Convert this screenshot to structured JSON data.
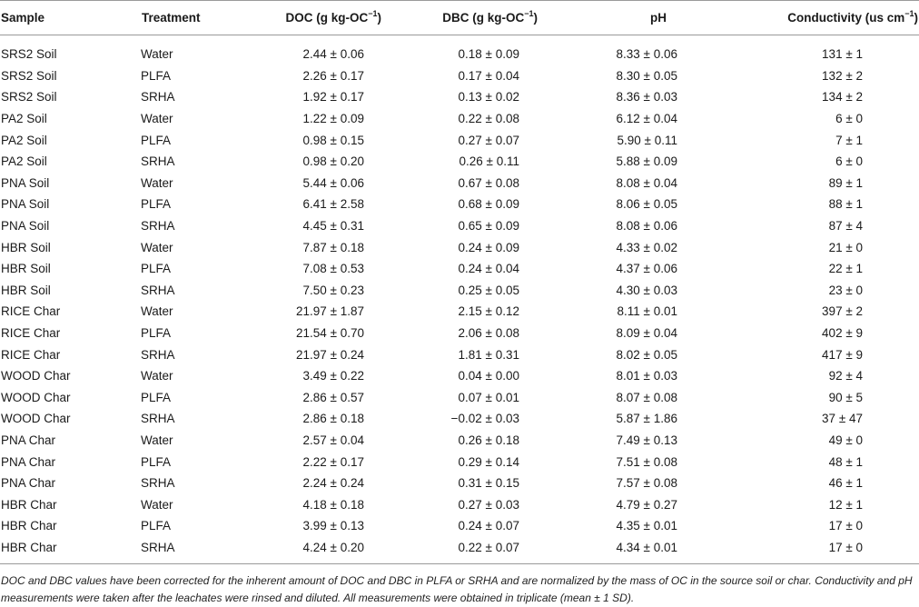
{
  "table": {
    "headers": {
      "sample": "Sample",
      "treatment": "Treatment",
      "doc": "DOC (g kg-OC",
      "doc_sup": "−1",
      "doc_close": ")",
      "dbc": "DBC (g kg-OC",
      "dbc_sup": "−1",
      "dbc_close": ")",
      "ph": "pH",
      "conductivity": "Conductivity (us cm",
      "conductivity_sup": "−1",
      "conductivity_close": ")"
    },
    "rows": [
      {
        "sample": "SRS2 Soil",
        "treatment": "Water",
        "doc": "2.44 ± 0.06",
        "dbc": "0.18 ± 0.09",
        "ph": "8.33 ± 0.06",
        "conductivity": "131 ± 1"
      },
      {
        "sample": "SRS2 Soil",
        "treatment": "PLFA",
        "doc": "2.26 ± 0.17",
        "dbc": "0.17 ± 0.04",
        "ph": "8.30 ± 0.05",
        "conductivity": "132 ± 2"
      },
      {
        "sample": "SRS2 Soil",
        "treatment": "SRHA",
        "doc": "1.92 ± 0.17",
        "dbc": "0.13 ± 0.02",
        "ph": "8.36 ± 0.03",
        "conductivity": "134 ± 2"
      },
      {
        "sample": "PA2 Soil",
        "treatment": "Water",
        "doc": "1.22 ± 0.09",
        "dbc": "0.22 ± 0.08",
        "ph": "6.12 ± 0.04",
        "conductivity": "6 ± 0"
      },
      {
        "sample": "PA2 Soil",
        "treatment": "PLFA",
        "doc": "0.98 ± 0.15",
        "dbc": "0.27 ± 0.07",
        "ph": "5.90 ± 0.11",
        "conductivity": "7 ± 1"
      },
      {
        "sample": "PA2 Soil",
        "treatment": "SRHA",
        "doc": "0.98 ± 0.20",
        "dbc": "0.26 ± 0.11",
        "ph": "5.88 ± 0.09",
        "conductivity": "6 ± 0"
      },
      {
        "sample": "PNA Soil",
        "treatment": "Water",
        "doc": "5.44 ± 0.06",
        "dbc": "0.67 ± 0.08",
        "ph": "8.08 ± 0.04",
        "conductivity": "89 ± 1"
      },
      {
        "sample": "PNA Soil",
        "treatment": "PLFA",
        "doc": "6.41 ± 2.58",
        "dbc": "0.68 ± 0.09",
        "ph": "8.06 ± 0.05",
        "conductivity": "88 ± 1"
      },
      {
        "sample": "PNA Soil",
        "treatment": "SRHA",
        "doc": "4.45 ± 0.31",
        "dbc": "0.65 ± 0.09",
        "ph": "8.08 ± 0.06",
        "conductivity": "87 ± 4"
      },
      {
        "sample": "HBR Soil",
        "treatment": "Water",
        "doc": "7.87 ± 0.18",
        "dbc": "0.24 ± 0.09",
        "ph": "4.33 ± 0.02",
        "conductivity": "21 ± 0"
      },
      {
        "sample": "HBR Soil",
        "treatment": "PLFA",
        "doc": "7.08 ± 0.53",
        "dbc": "0.24 ± 0.04",
        "ph": "4.37 ± 0.06",
        "conductivity": "22 ± 1"
      },
      {
        "sample": "HBR Soil",
        "treatment": "SRHA",
        "doc": "7.50 ± 0.23",
        "dbc": "0.25 ± 0.05",
        "ph": "4.30 ± 0.03",
        "conductivity": "23 ± 0"
      },
      {
        "sample": "RICE Char",
        "treatment": "Water",
        "doc": "21.97 ± 1.87",
        "dbc": "2.15 ± 0.12",
        "ph": "8.11 ± 0.01",
        "conductivity": "397 ± 2"
      },
      {
        "sample": "RICE Char",
        "treatment": "PLFA",
        "doc": "21.54 ± 0.70",
        "dbc": "2.06 ± 0.08",
        "ph": "8.09 ± 0.04",
        "conductivity": "402 ± 9"
      },
      {
        "sample": "RICE Char",
        "treatment": "SRHA",
        "doc": "21.97 ± 0.24",
        "dbc": "1.81 ± 0.31",
        "ph": "8.02 ± 0.05",
        "conductivity": "417 ± 9"
      },
      {
        "sample": "WOOD Char",
        "treatment": "Water",
        "doc": "3.49 ± 0.22",
        "dbc": "0.04 ± 0.00",
        "ph": "8.01 ± 0.03",
        "conductivity": "92 ± 4"
      },
      {
        "sample": "WOOD Char",
        "treatment": "PLFA",
        "doc": "2.86 ± 0.57",
        "dbc": "0.07 ± 0.01",
        "ph": "8.07 ± 0.08",
        "conductivity": "90 ± 5"
      },
      {
        "sample": "WOOD Char",
        "treatment": "SRHA",
        "doc": "2.86 ± 0.18",
        "dbc": "−0.02 ± 0.03",
        "ph": "5.87 ± 1.86",
        "conductivity": "37 ± 47"
      },
      {
        "sample": "PNA Char",
        "treatment": "Water",
        "doc": "2.57 ± 0.04",
        "dbc": "0.26 ± 0.18",
        "ph": "7.49 ± 0.13",
        "conductivity": "49 ± 0"
      },
      {
        "sample": "PNA Char",
        "treatment": "PLFA",
        "doc": "2.22 ± 0.17",
        "dbc": "0.29 ± 0.14",
        "ph": "7.51 ± 0.08",
        "conductivity": "48 ± 1"
      },
      {
        "sample": "PNA Char",
        "treatment": "SRHA",
        "doc": "2.24 ± 0.24",
        "dbc": "0.31 ± 0.15",
        "ph": "7.57 ± 0.08",
        "conductivity": "46 ± 1"
      },
      {
        "sample": "HBR Char",
        "treatment": "Water",
        "doc": "4.18 ± 0.18",
        "dbc": "0.27 ± 0.03",
        "ph": "4.79 ± 0.27",
        "conductivity": "12 ± 1"
      },
      {
        "sample": "HBR Char",
        "treatment": "PLFA",
        "doc": "3.99 ± 0.13",
        "dbc": "0.24 ± 0.07",
        "ph": "4.35 ± 0.01",
        "conductivity": "17 ± 0"
      },
      {
        "sample": "HBR Char",
        "treatment": "SRHA",
        "doc": "4.24 ± 0.20",
        "dbc": "0.22 ± 0.07",
        "ph": "4.34 ± 0.01",
        "conductivity": "17 ± 0"
      }
    ]
  },
  "footnote": "DOC and DBC values have been corrected for the inherent amount of DOC and DBC in PLFA or SRHA and are normalized by the mass of OC in the source soil or char. Conductivity and pH measurements were taken after the leachates were rinsed and diluted. All measurements were obtained in triplicate (mean ± 1 SD)."
}
